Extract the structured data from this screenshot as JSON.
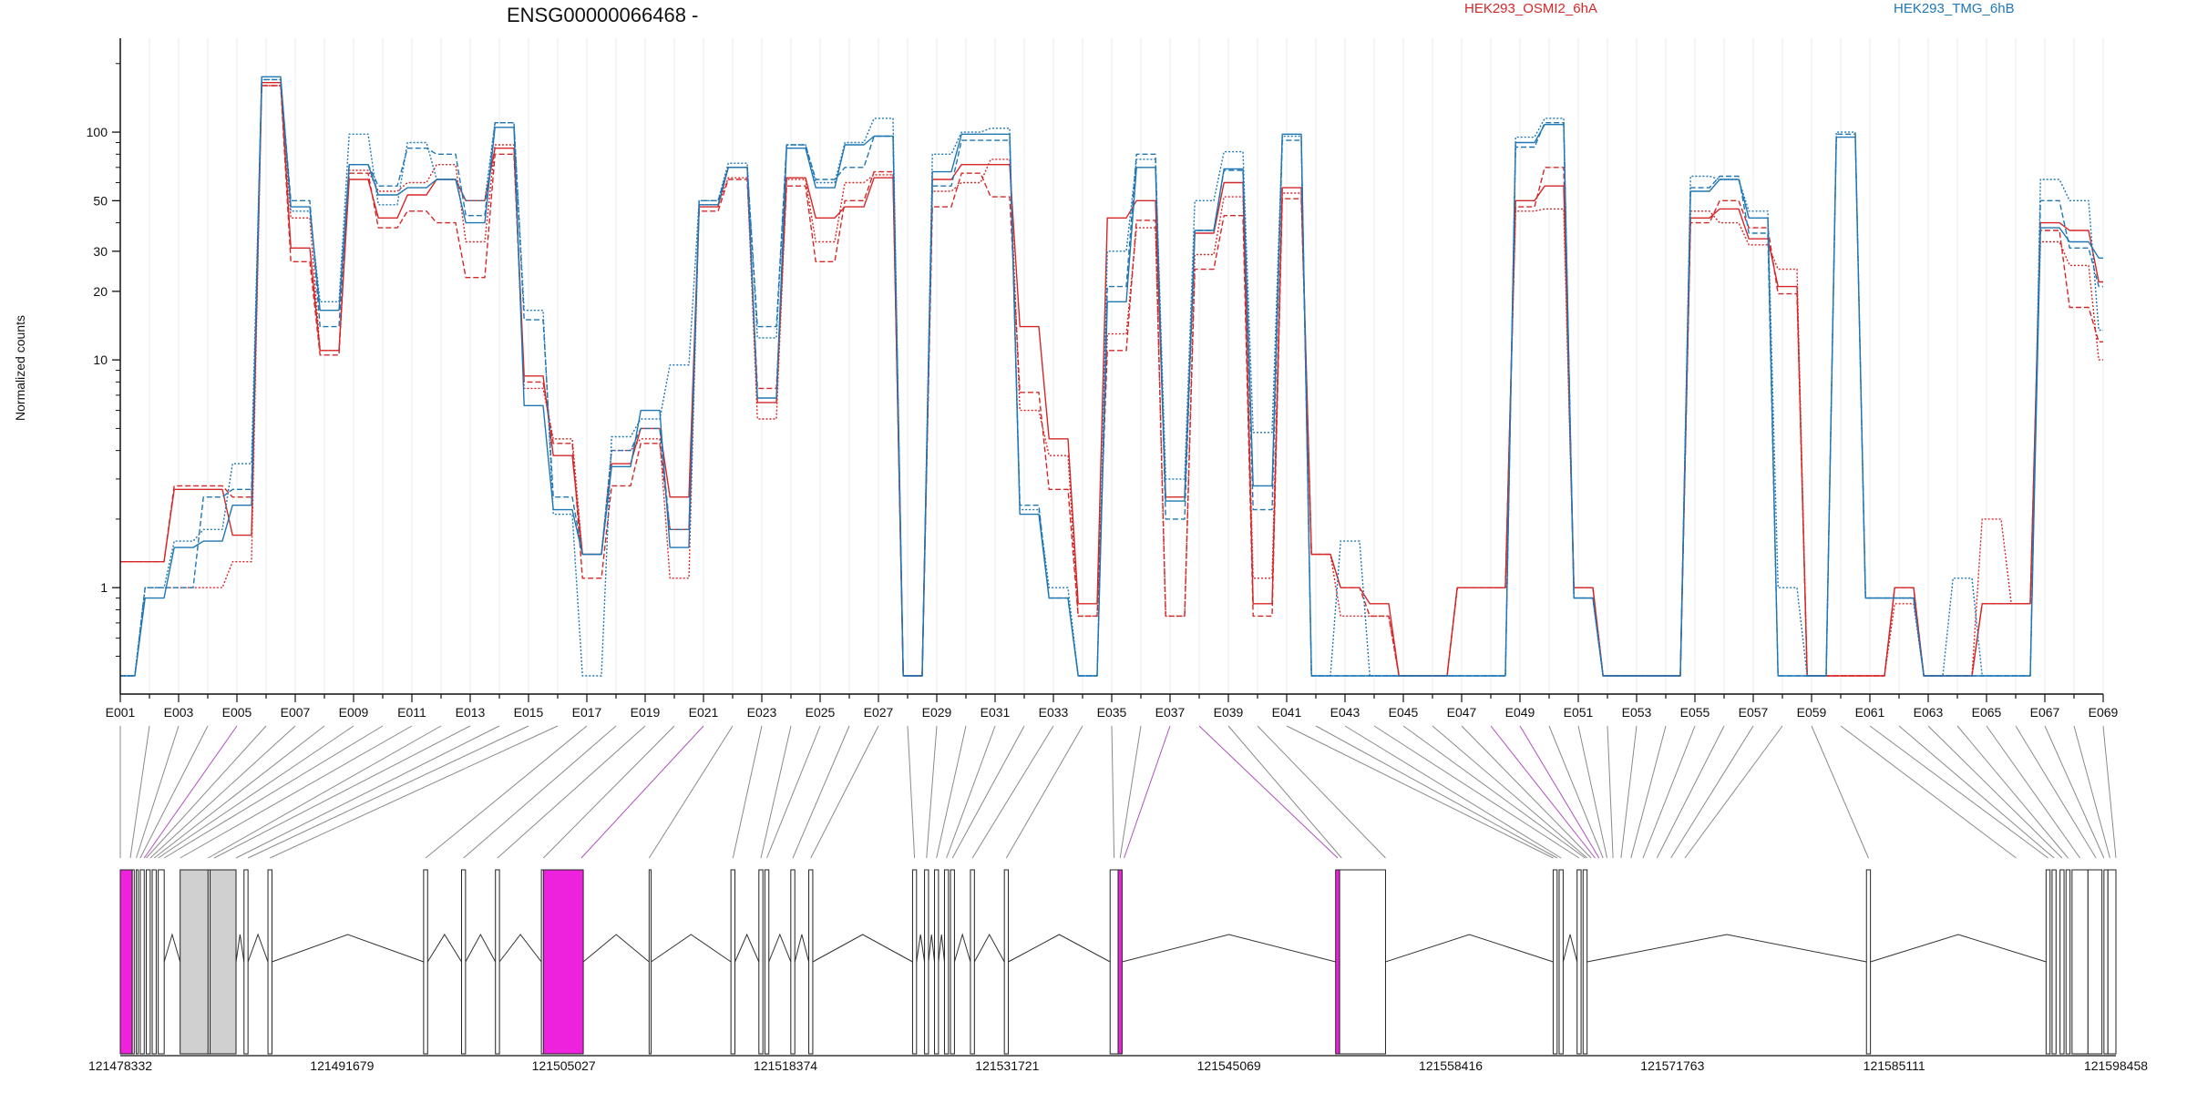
{
  "chart_data": {
    "type": "line",
    "title": "ENSG00000066468 -",
    "xlabel": "",
    "ylabel": "Normalized counts",
    "yscale": "log",
    "ylim": [
      0.41,
      240
    ],
    "yticks": [
      1,
      10,
      20,
      30,
      50,
      100
    ],
    "exons": [
      "E001",
      "E002",
      "E003",
      "E004",
      "E005",
      "E006",
      "E007",
      "E008",
      "E009",
      "E010",
      "E011",
      "E012",
      "E013",
      "E014",
      "E015",
      "E016",
      "E017",
      "E018",
      "E019",
      "E020",
      "E021",
      "E022",
      "E023",
      "E024",
      "E025",
      "E026",
      "E027",
      "E028",
      "E029",
      "E030",
      "E031",
      "E032",
      "E033",
      "E034",
      "E035",
      "E036",
      "E037",
      "E038",
      "E039",
      "E040",
      "E041",
      "E042",
      "E043",
      "E044",
      "E045",
      "E046",
      "E047",
      "E048",
      "E049",
      "E050",
      "E051",
      "E052",
      "E053",
      "E054",
      "E055",
      "E056",
      "E057",
      "E058",
      "E059",
      "E060",
      "E061",
      "E062",
      "E063",
      "E064",
      "E065",
      "E066",
      "E067",
      "E068",
      "E069"
    ],
    "labeled_exons": [
      "E001",
      "E003",
      "E005",
      "E007",
      "E009",
      "E011",
      "E013",
      "E015",
      "E017",
      "E019",
      "E021",
      "E023",
      "E025",
      "E027",
      "E029",
      "E031",
      "E033",
      "E035",
      "E037",
      "E039",
      "E041",
      "E043",
      "E045",
      "E047",
      "E049",
      "E051",
      "E053",
      "E055",
      "E057",
      "E059",
      "E061",
      "E063",
      "E065",
      "E067",
      "E069"
    ],
    "legend": {
      "placement": "top",
      "entries": [
        "HEK293_OSMI2_6hA",
        "HEK293_TMG_6hB"
      ]
    },
    "series": [
      {
        "name": "HEK293_OSMI2_6hA",
        "color": "#d62728",
        "style": "solid",
        "values": [
          1.3,
          1.3,
          2.7,
          2.7,
          1.7,
          165,
          31,
          11,
          62,
          42,
          53,
          62,
          50,
          85,
          8.5,
          3.8,
          1.4,
          3.5,
          5,
          2.5,
          47,
          70,
          6.5,
          63,
          42,
          47,
          63,
          0.41,
          62,
          72,
          72,
          14,
          4.5,
          0.85,
          42,
          50,
          2.5,
          36,
          60,
          0.85,
          57,
          1.4,
          1,
          0.85,
          0.41,
          0.41,
          1,
          1,
          50,
          58,
          1,
          0.41,
          0.41,
          0.41,
          42,
          46,
          34,
          21,
          0.41,
          0.41,
          0.41,
          1,
          0.41,
          0.41,
          0.85,
          0.85,
          40,
          37,
          22
        ]
      },
      {
        "name": "HEK293_OSMI2_6hA",
        "color": "#d62728",
        "style": "dashed",
        "values": [
          1.3,
          1.3,
          2.8,
          2.8,
          2.5,
          160,
          27,
          10.5,
          66,
          38,
          45,
          40,
          23,
          80,
          8,
          4.3,
          1.1,
          2.8,
          4.3,
          1.8,
          45,
          62,
          7.5,
          58,
          27,
          50,
          67,
          0.41,
          47,
          66,
          52,
          7.2,
          2.7,
          0.75,
          11,
          41,
          0.75,
          25,
          43,
          0.75,
          51,
          1.4,
          1,
          0.75,
          0.41,
          0.41,
          1,
          1,
          47,
          70,
          1,
          0.41,
          0.41,
          0.41,
          40,
          50,
          38,
          19.5,
          0.41,
          0.41,
          0.41,
          1,
          0.41,
          0.41,
          0.85,
          0.85,
          37,
          17,
          12
        ]
      },
      {
        "name": "HEK293_OSMI2_6hA",
        "color": "#d62728",
        "style": "dotted",
        "values": [
          0.41,
          1,
          1,
          1,
          1.3,
          160,
          42,
          11,
          68,
          55,
          60,
          72,
          33,
          88,
          7.5,
          4.5,
          1.4,
          4,
          4.5,
          1.1,
          48,
          63,
          5.5,
          62,
          33,
          60,
          65,
          0.41,
          55,
          60,
          76,
          6,
          3.8,
          0.75,
          13,
          38,
          0.75,
          29,
          52,
          1.1,
          54,
          1.4,
          0.75,
          0.75,
          0.41,
          0.41,
          1,
          1,
          45,
          46,
          1,
          0.41,
          0.41,
          0.41,
          45,
          40,
          32,
          25,
          0.41,
          0.41,
          0.41,
          0.85,
          0.41,
          0.41,
          2,
          0.85,
          33,
          26,
          10
        ]
      },
      {
        "name": "HEK293_TMG_6hB",
        "color": "#1f77b4",
        "style": "solid",
        "values": [
          0.41,
          0.9,
          1.5,
          1.6,
          2.3,
          175,
          47,
          16.5,
          72,
          53,
          57,
          62,
          40,
          105,
          6.3,
          2.2,
          1.4,
          3.4,
          6,
          1.5,
          48,
          70,
          6.8,
          85,
          57,
          88,
          96,
          0.41,
          67,
          98,
          98,
          2.1,
          0.9,
          0.41,
          18,
          70,
          2.4,
          37,
          69,
          2.8,
          98,
          0.41,
          0.41,
          0.41,
          0.41,
          0.41,
          0.41,
          0.41,
          90,
          108,
          0.9,
          0.41,
          0.41,
          0.41,
          55,
          62,
          42,
          0.41,
          0.41,
          95,
          0.9,
          0.9,
          0.41,
          0.41,
          0.41,
          0.41,
          38,
          33,
          28
        ]
      },
      {
        "name": "HEK293_TMG_6hB",
        "color": "#1f77b4",
        "style": "dashed",
        "values": [
          0.41,
          1,
          1,
          2.5,
          2.7,
          170,
          50,
          14,
          72,
          58,
          85,
          80,
          43,
          110,
          15,
          2.5,
          1.4,
          4,
          5,
          1.8,
          50,
          70,
          14,
          88,
          62,
          70,
          96,
          0.41,
          58,
          92,
          92,
          2.3,
          0.9,
          0.41,
          21,
          80,
          2,
          37,
          68,
          2.2,
          92,
          0.41,
          0.41,
          0.41,
          0.41,
          0.41,
          0.41,
          0.41,
          86,
          110,
          0.9,
          0.41,
          0.41,
          0.41,
          57,
          64,
          36,
          0.41,
          0.41,
          98,
          0.9,
          0.9,
          0.41,
          0.41,
          0.41,
          0.41,
          50,
          31,
          21
        ]
      },
      {
        "name": "HEK293_TMG_6hB",
        "color": "#1f77b4",
        "style": "dotted",
        "values": [
          0.41,
          1,
          1.6,
          1.8,
          3.5,
          170,
          45,
          18,
          98,
          48,
          90,
          62,
          50,
          110,
          16.5,
          2.1,
          0.41,
          4.6,
          5.5,
          9.5,
          50,
          73,
          12.5,
          88,
          60,
          90,
          115,
          0.41,
          80,
          100,
          104,
          2.2,
          1,
          0.41,
          30,
          76,
          3,
          50,
          82,
          4.8,
          96,
          0.41,
          1.6,
          0.41,
          0.41,
          0.41,
          0.41,
          0.41,
          95,
          115,
          0.9,
          0.41,
          0.41,
          0.41,
          64,
          62,
          45,
          1,
          0.41,
          100,
          0.9,
          0.9,
          0.41,
          1.1,
          0.41,
          0.41,
          62,
          50,
          13.5
        ]
      }
    ],
    "gene_model": {
      "tick_labels": [
        "121478332",
        "121491679",
        "121505027",
        "121518374",
        "121531721",
        "121545069",
        "121558416",
        "121571763",
        "121585111",
        "121598458"
      ]
    }
  }
}
